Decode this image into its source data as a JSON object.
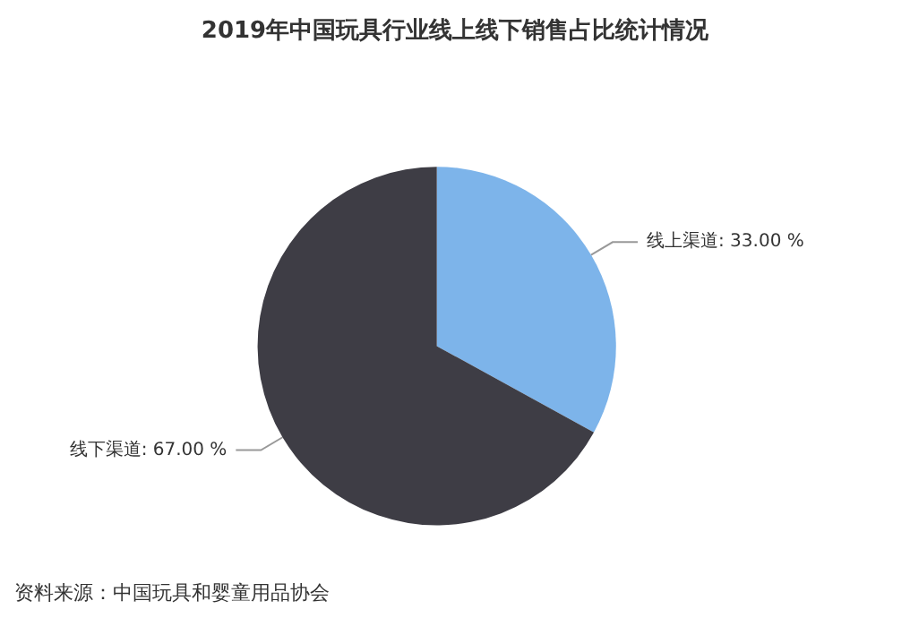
{
  "chart_data": {
    "type": "pie",
    "title": "2019年中国玩具行业线上线下销售占比统计情况",
    "categories": [
      "线上渠道",
      "线下渠道"
    ],
    "values": [
      33,
      67
    ],
    "value_labels": [
      "33.00 %",
      "67.00 %"
    ],
    "colors": [
      "#7db4ea",
      "#3e3d45"
    ],
    "legend": false,
    "annotations": [
      "资料来源：中国玩具和婴童用品协会"
    ]
  }
}
